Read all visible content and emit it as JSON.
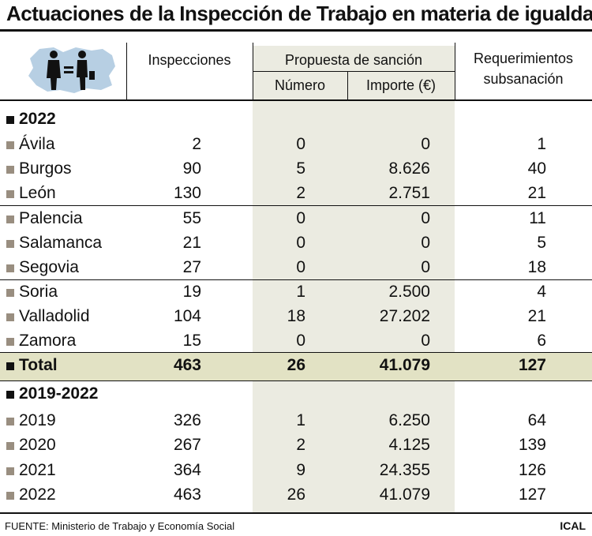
{
  "title": "Actuaciones de la Inspección de Trabajo en materia de igualdad",
  "headers": {
    "inspecciones": "Inspecciones",
    "propuesta": "Propuesta de sanción",
    "numero": "Número",
    "importe": "Importe (€)",
    "requerimientos_line1": "Requerimientos",
    "requerimientos_line2": "subsanación"
  },
  "rows": [
    {
      "type": "section",
      "label": "2022"
    },
    {
      "type": "data",
      "label": "Ávila",
      "inspecciones": "2",
      "numero": "0",
      "importe": "0",
      "requerimientos": "1"
    },
    {
      "type": "data",
      "label": "Burgos",
      "inspecciones": "90",
      "numero": "5",
      "importe": "8.626",
      "requerimientos": "40"
    },
    {
      "type": "data",
      "label": "León",
      "inspecciones": "130",
      "numero": "2",
      "importe": "2.751",
      "requerimientos": "21"
    },
    {
      "type": "data",
      "label": "Palencia",
      "inspecciones": "55",
      "numero": "0",
      "importe": "0",
      "requerimientos": "11"
    },
    {
      "type": "data",
      "label": "Salamanca",
      "inspecciones": "21",
      "numero": "0",
      "importe": "0",
      "requerimientos": "5"
    },
    {
      "type": "data",
      "label": "Segovia",
      "inspecciones": "27",
      "numero": "0",
      "importe": "0",
      "requerimientos": "18"
    },
    {
      "type": "data",
      "label": "Soria",
      "inspecciones": "19",
      "numero": "1",
      "importe": "2.500",
      "requerimientos": "4"
    },
    {
      "type": "data",
      "label": "Valladolid",
      "inspecciones": "104",
      "numero": "18",
      "importe": "27.202",
      "requerimientos": "21"
    },
    {
      "type": "data",
      "label": "Zamora",
      "inspecciones": "15",
      "numero": "0",
      "importe": "0",
      "requerimientos": "6"
    },
    {
      "type": "total",
      "label": "Total",
      "inspecciones": "463",
      "numero": "26",
      "importe": "41.079",
      "requerimientos": "127"
    },
    {
      "type": "section",
      "label": "2019-2022"
    },
    {
      "type": "data",
      "label": "2019",
      "inspecciones": "326",
      "numero": "1",
      "importe": "6.250",
      "requerimientos": "64"
    },
    {
      "type": "data",
      "label": "2020",
      "inspecciones": "267",
      "numero": "2",
      "importe": "4.125",
      "requerimientos": "139"
    },
    {
      "type": "data",
      "label": "2021",
      "inspecciones": "364",
      "numero": "9",
      "importe": "24.355",
      "requerimientos": "126"
    },
    {
      "type": "data",
      "label": "2022",
      "inspecciones": "463",
      "numero": "26",
      "importe": "41.079",
      "requerimientos": "127"
    }
  ],
  "footer": "FUENTE: Ministerio de Trabajo y Economía Social",
  "brand": "ICAL",
  "colors": {
    "shade": "#ebebe1",
    "total_band": "#e2e2c4",
    "bullet": "#998e80",
    "map": "#b7cfe3"
  }
}
